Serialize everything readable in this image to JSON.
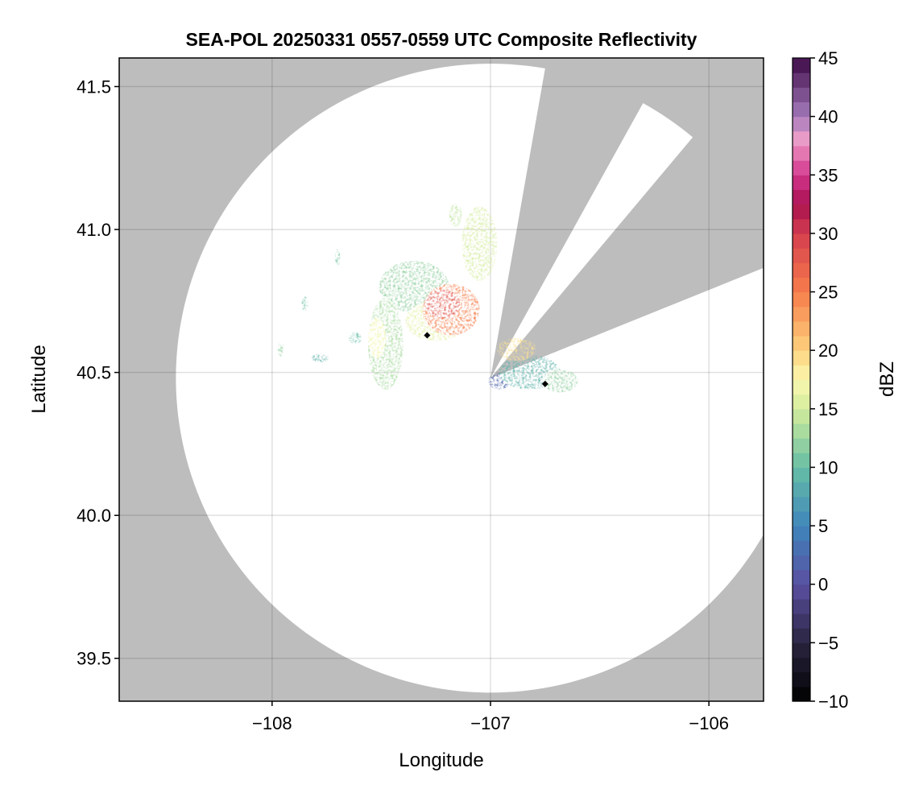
{
  "chart_data": {
    "type": "heatmap",
    "title": "SEA-POL 20250331 0557-0559 UTC Composite Reflectivity",
    "xlabel": "Longitude",
    "ylabel": "Latitude",
    "xlim": [
      -108.7,
      -105.75
    ],
    "ylim": [
      39.35,
      41.6
    ],
    "xticks": [
      -108,
      -107,
      -106
    ],
    "xtick_labels": [
      "−108",
      "−107",
      "−106"
    ],
    "yticks": [
      39.5,
      40.0,
      40.5,
      41.0,
      41.5
    ],
    "ytick_labels": [
      "39.5",
      "40.0",
      "40.5",
      "41.0",
      "41.5"
    ],
    "grid": true,
    "radar_center": {
      "lon": -107.0,
      "lat": 40.48
    },
    "radar_range_deg_lat": 1.1,
    "blocked_sectors_deg": [
      [
        10,
        29
      ],
      [
        40,
        68
      ]
    ],
    "background_color": "#bdbdbd",
    "coverage_color": "#ffffff",
    "colorbar": {
      "label": "dBZ",
      "range": [
        -10,
        45
      ],
      "ticks": [
        -10,
        -5,
        0,
        5,
        10,
        15,
        20,
        25,
        30,
        35,
        40,
        45
      ],
      "tick_labels": [
        "−10",
        "−5",
        "0",
        "5",
        "10",
        "15",
        "20",
        "25",
        "30",
        "35",
        "40",
        "45"
      ],
      "colormap_stops": [
        {
          "value": -10,
          "color": "#000000"
        },
        {
          "value": -5,
          "color": "#2a2540"
        },
        {
          "value": 0,
          "color": "#5a4fa2"
        },
        {
          "value": 5,
          "color": "#3f86bc"
        },
        {
          "value": 10,
          "color": "#66bea5"
        },
        {
          "value": 15,
          "color": "#d3ec9b"
        },
        {
          "value": 17.5,
          "color": "#fbf8b0"
        },
        {
          "value": 20,
          "color": "#fed27f"
        },
        {
          "value": 25,
          "color": "#f67d4a"
        },
        {
          "value": 30,
          "color": "#d53e4f"
        },
        {
          "value": 32.5,
          "color": "#a8104f"
        },
        {
          "value": 35,
          "color": "#d2378e"
        },
        {
          "value": 38,
          "color": "#ee9dc8"
        },
        {
          "value": 40,
          "color": "#a47bbd"
        },
        {
          "value": 45,
          "color": "#3d0a46"
        }
      ]
    },
    "echo_regions": [
      {
        "lon": -107.18,
        "lat": 40.72,
        "rx": 0.13,
        "ry": 0.09,
        "dbz": 25
      },
      {
        "lon": -107.22,
        "lat": 40.74,
        "rx": 0.08,
        "ry": 0.05,
        "dbz": 28
      },
      {
        "lon": -107.35,
        "lat": 40.8,
        "rx": 0.16,
        "ry": 0.09,
        "dbz": 12
      },
      {
        "lon": -107.25,
        "lat": 40.68,
        "rx": 0.14,
        "ry": 0.07,
        "dbz": 16
      },
      {
        "lon": -107.05,
        "lat": 40.95,
        "rx": 0.08,
        "ry": 0.13,
        "dbz": 15
      },
      {
        "lon": -107.48,
        "lat": 40.6,
        "rx": 0.08,
        "ry": 0.16,
        "dbz": 13
      },
      {
        "lon": -107.52,
        "lat": 40.62,
        "rx": 0.04,
        "ry": 0.07,
        "dbz": 17
      },
      {
        "lon": -107.4,
        "lat": 40.82,
        "rx": 0.07,
        "ry": 0.04,
        "dbz": 8
      },
      {
        "lon": -106.88,
        "lat": 40.58,
        "rx": 0.09,
        "ry": 0.04,
        "dbz": 19
      },
      {
        "lon": -106.82,
        "lat": 40.5,
        "rx": 0.14,
        "ry": 0.06,
        "dbz": 9
      },
      {
        "lon": -106.68,
        "lat": 40.47,
        "rx": 0.08,
        "ry": 0.04,
        "dbz": 12
      },
      {
        "lon": -106.96,
        "lat": 40.47,
        "rx": 0.05,
        "ry": 0.03,
        "dbz": 2
      },
      {
        "lon": -107.62,
        "lat": 40.62,
        "rx": 0.03,
        "ry": 0.02,
        "dbz": 10
      },
      {
        "lon": -107.78,
        "lat": 40.55,
        "rx": 0.04,
        "ry": 0.015,
        "dbz": 9
      },
      {
        "lon": -107.85,
        "lat": 40.74,
        "rx": 0.015,
        "ry": 0.025,
        "dbz": 10
      },
      {
        "lon": -107.7,
        "lat": 40.9,
        "rx": 0.012,
        "ry": 0.03,
        "dbz": 11
      },
      {
        "lon": -107.96,
        "lat": 40.58,
        "rx": 0.015,
        "ry": 0.025,
        "dbz": 12
      },
      {
        "lon": -107.16,
        "lat": 41.05,
        "rx": 0.03,
        "ry": 0.04,
        "dbz": 14
      }
    ],
    "site_markers": [
      {
        "lon": -107.29,
        "lat": 40.63
      },
      {
        "lon": -106.75,
        "lat": 40.46
      }
    ]
  }
}
